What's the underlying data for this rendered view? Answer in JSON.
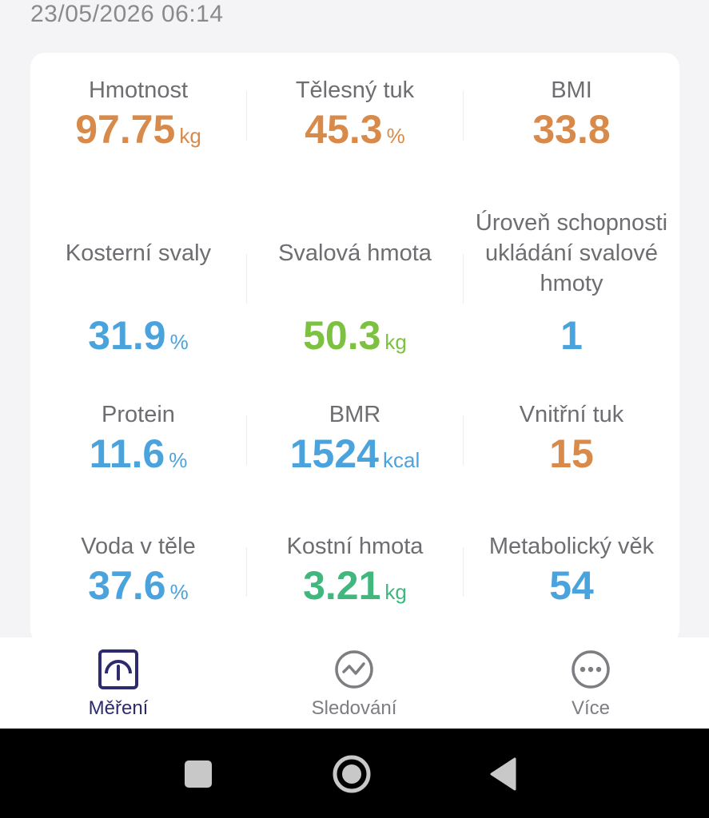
{
  "header": {
    "timestamp": "23/05/2026 06:14"
  },
  "metrics": {
    "weight": {
      "label": "Hmotnost",
      "value": "97.75",
      "unit": "kg"
    },
    "body_fat": {
      "label": "Tělesný tuk",
      "value": "45.3",
      "unit": "%"
    },
    "bmi": {
      "label": "BMI",
      "value": "33.8",
      "unit": ""
    },
    "skeletal_muscle": {
      "label": "Kosterní svaly",
      "value": "31.9",
      "unit": "%"
    },
    "muscle_mass": {
      "label": "Svalová hmota",
      "value": "50.3",
      "unit": "kg"
    },
    "muscle_storage": {
      "label_line1": "Úroveň schopnosti",
      "label_line2": "ukládání svalové",
      "label_line3": "hmoty",
      "value": "1",
      "unit": ""
    },
    "protein": {
      "label": "Protein",
      "value": "11.6",
      "unit": "%"
    },
    "bmr": {
      "label": "BMR",
      "value": "1524",
      "unit": "kcal"
    },
    "visceral_fat": {
      "label": "Vnitřní tuk",
      "value": "15",
      "unit": ""
    },
    "body_water": {
      "label": "Voda v těle",
      "value": "37.6",
      "unit": "%"
    },
    "bone_mass": {
      "label": "Kostní hmota",
      "value": "3.21",
      "unit": "kg"
    },
    "metabolic_age": {
      "label": "Metabolický věk",
      "value": "54",
      "unit": ""
    }
  },
  "colors": {
    "orange": "#d88a4a",
    "blue": "#4aa3dc",
    "green": "#7cc13f",
    "teal": "#3fb77d",
    "active_tab": "#2d2a6e"
  },
  "tabbar": {
    "tabs": [
      {
        "label": "Měření",
        "icon": "scale-gauge-icon",
        "active": true
      },
      {
        "label": "Sledování",
        "icon": "trend-chart-icon",
        "active": false
      },
      {
        "label": "Více",
        "icon": "more-dots-icon",
        "active": false
      }
    ]
  },
  "system_nav": {
    "buttons": [
      "recents-square-icon",
      "home-circle-icon",
      "back-triangle-icon"
    ]
  }
}
